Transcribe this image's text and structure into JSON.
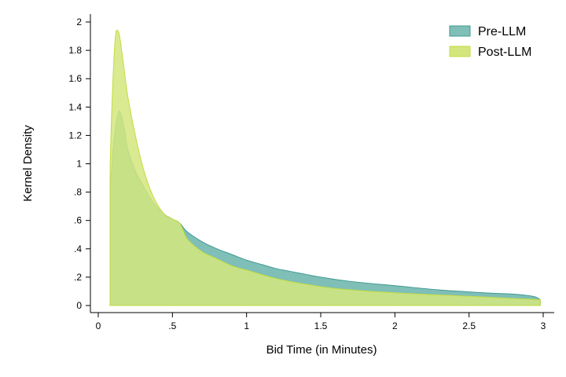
{
  "chart_data": {
    "type": "area",
    "title": "",
    "xlabel": "Bid Time (in Minutes)",
    "ylabel": "Kernel Density",
    "xlim": [
      0,
      3
    ],
    "ylim": [
      0,
      2
    ],
    "x_ticks": [
      {
        "value": 0,
        "label": "0"
      },
      {
        "value": 0.5,
        "label": ".5"
      },
      {
        "value": 1,
        "label": "1"
      },
      {
        "value": 1.5,
        "label": "1.5"
      },
      {
        "value": 2,
        "label": "2"
      },
      {
        "value": 2.5,
        "label": "2.5"
      },
      {
        "value": 3,
        "label": "3"
      }
    ],
    "y_ticks": [
      {
        "value": 0,
        "label": "0"
      },
      {
        "value": 0.2,
        "label": ".2"
      },
      {
        "value": 0.4,
        "label": ".4"
      },
      {
        "value": 0.6,
        "label": ".6"
      },
      {
        "value": 0.8,
        "label": ".8"
      },
      {
        "value": 1,
        "label": "1"
      },
      {
        "value": 1.2,
        "label": "1.2"
      },
      {
        "value": 1.4,
        "label": "1.4"
      },
      {
        "value": 1.6,
        "label": "1.6"
      },
      {
        "value": 1.8,
        "label": "1.8"
      },
      {
        "value": 2,
        "label": "2"
      }
    ],
    "grid": false,
    "legend_position": "top-right",
    "series": [
      {
        "name": "Pre-LLM",
        "fill": "#7fbfb8",
        "stroke": "#3f9a92",
        "x": [
          0.08,
          0.09,
          0.1,
          0.12,
          0.14,
          0.16,
          0.18,
          0.2,
          0.25,
          0.3,
          0.35,
          0.4,
          0.45,
          0.5,
          0.55,
          0.6,
          0.7,
          0.8,
          0.9,
          1.0,
          1.1,
          1.2,
          1.3,
          1.5,
          1.7,
          2.0,
          2.3,
          2.6,
          2.8,
          2.9,
          2.95,
          2.98
        ],
        "y": [
          0.85,
          0.95,
          1.1,
          1.28,
          1.37,
          1.32,
          1.22,
          1.1,
          0.95,
          0.85,
          0.76,
          0.69,
          0.64,
          0.61,
          0.58,
          0.52,
          0.45,
          0.4,
          0.36,
          0.32,
          0.29,
          0.26,
          0.24,
          0.2,
          0.17,
          0.14,
          0.11,
          0.09,
          0.08,
          0.07,
          0.06,
          0.04
        ]
      },
      {
        "name": "Post-LLM",
        "fill": "#d3e67e",
        "stroke": "#c4db3e",
        "x": [
          0.08,
          0.09,
          0.1,
          0.11,
          0.12,
          0.13,
          0.14,
          0.15,
          0.16,
          0.18,
          0.2,
          0.25,
          0.3,
          0.35,
          0.4,
          0.45,
          0.5,
          0.55,
          0.6,
          0.7,
          0.8,
          0.9,
          1.0,
          1.2,
          1.4,
          1.6,
          2.0,
          2.4,
          2.8,
          2.98
        ],
        "y": [
          0.98,
          1.35,
          1.62,
          1.82,
          1.93,
          1.94,
          1.92,
          1.86,
          1.78,
          1.62,
          1.47,
          1.2,
          0.98,
          0.82,
          0.71,
          0.64,
          0.61,
          0.58,
          0.47,
          0.38,
          0.33,
          0.28,
          0.25,
          0.19,
          0.15,
          0.12,
          0.09,
          0.07,
          0.05,
          0.04
        ]
      }
    ]
  }
}
